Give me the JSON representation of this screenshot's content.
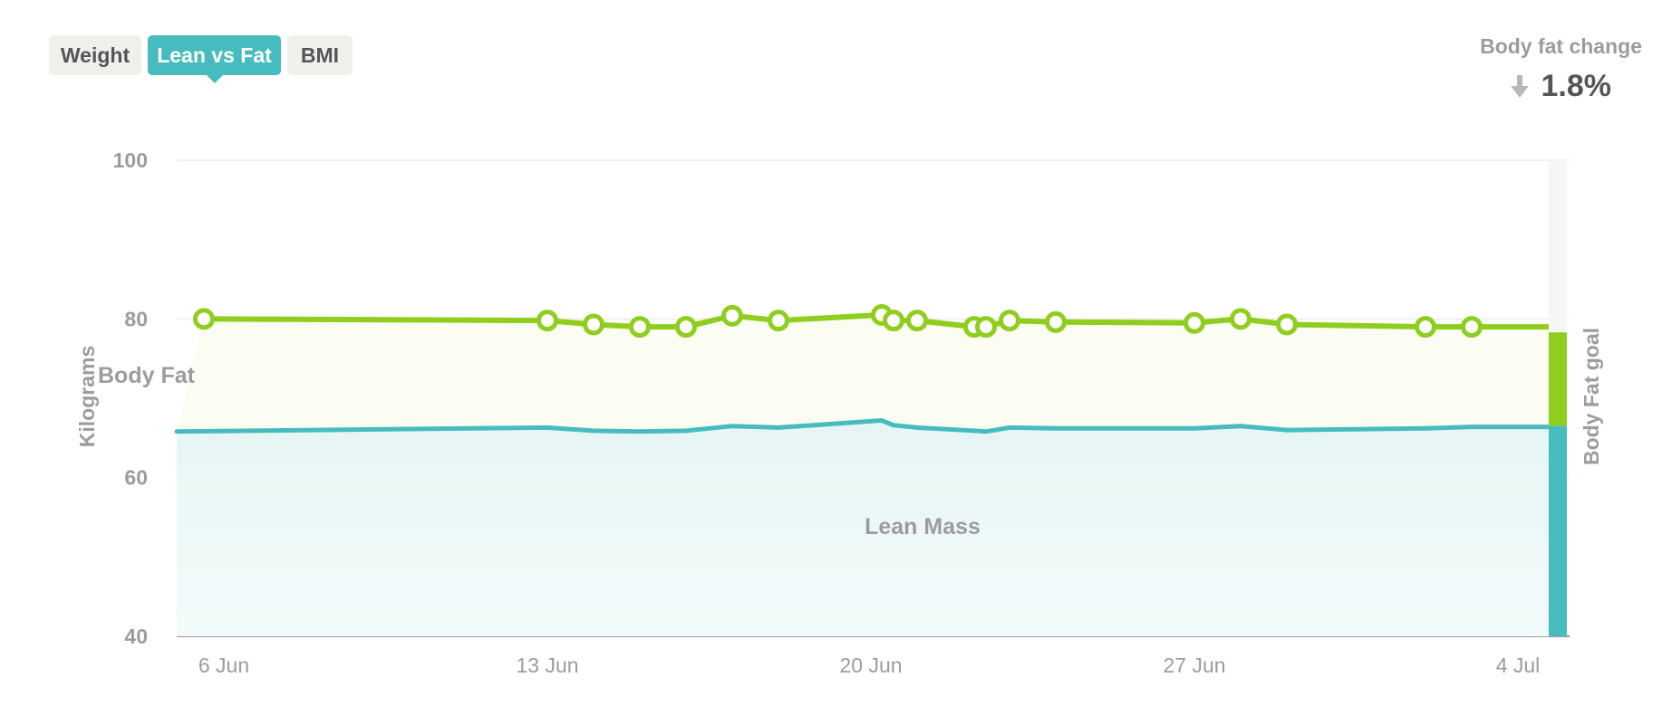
{
  "tabs": [
    {
      "label": "Weight",
      "active": false
    },
    {
      "label": "Lean vs Fat",
      "active": true
    },
    {
      "label": "BMI",
      "active": false
    }
  ],
  "stat": {
    "label": "Body fat change",
    "value": "1.8%",
    "direction": "down",
    "icon": "arrow-down-icon"
  },
  "colors": {
    "accent": "#47bcbf",
    "fat_line": "#8fcd1e",
    "lean_line": "#47bcbf",
    "text_muted": "#9c9c9c",
    "text_dark": "#555555"
  },
  "chart_data": {
    "type": "line",
    "ylabel": "Kilograms",
    "ylim": [
      40,
      100
    ],
    "yticks": [
      "100",
      "80",
      "60",
      "40"
    ],
    "xticks": [
      "6 Jun",
      "13 Jun",
      "20 Jun",
      "27 Jun",
      "4 Jul"
    ],
    "area_labels": {
      "fat": "Body Fat",
      "lean": "Lean Mass"
    },
    "goal_label": "Body Fat goal",
    "goal": {
      "lean_kg": 66.5,
      "total_kg": 78.3
    },
    "series": [
      {
        "key": "fat",
        "x": [
          "5 Jun",
          "13 Jun",
          "14 Jun",
          "15 Jun",
          "16 Jun",
          "17 Jun",
          "18 Jun",
          "20 Jun",
          "20 Jun",
          "21 Jun",
          "22 Jun",
          "22 Jun",
          "23 Jun",
          "24 Jun",
          "27 Jun",
          "28 Jun",
          "29 Jun",
          "2 Jul",
          "3 Jul",
          "5 Jul"
        ],
        "values": [
          80.0,
          79.8,
          79.3,
          79.0,
          79.0,
          80.4,
          79.8,
          80.5,
          79.8,
          79.8,
          79.0,
          79.0,
          79.8,
          79.6,
          79.5,
          80.0,
          79.3,
          79.0,
          79.0,
          79.0
        ],
        "markers": [
          true,
          true,
          true,
          true,
          true,
          true,
          true,
          true,
          true,
          true,
          true,
          true,
          true,
          true,
          true,
          true,
          true,
          true,
          true,
          false
        ]
      },
      {
        "key": "lean",
        "x": [
          "5 Jun",
          "13 Jun",
          "14 Jun",
          "15 Jun",
          "16 Jun",
          "17 Jun",
          "18 Jun",
          "20 Jun",
          "20 Jun",
          "21 Jun",
          "22 Jun",
          "22 Jun",
          "23 Jun",
          "24 Jun",
          "27 Jun",
          "28 Jun",
          "29 Jun",
          "2 Jul",
          "3 Jul",
          "5 Jul"
        ],
        "values": [
          65.8,
          66.3,
          65.9,
          65.8,
          65.9,
          66.5,
          66.3,
          67.2,
          66.6,
          66.3,
          65.9,
          65.8,
          66.3,
          66.2,
          66.2,
          66.5,
          66.0,
          66.2,
          66.4,
          66.4
        ]
      }
    ]
  }
}
